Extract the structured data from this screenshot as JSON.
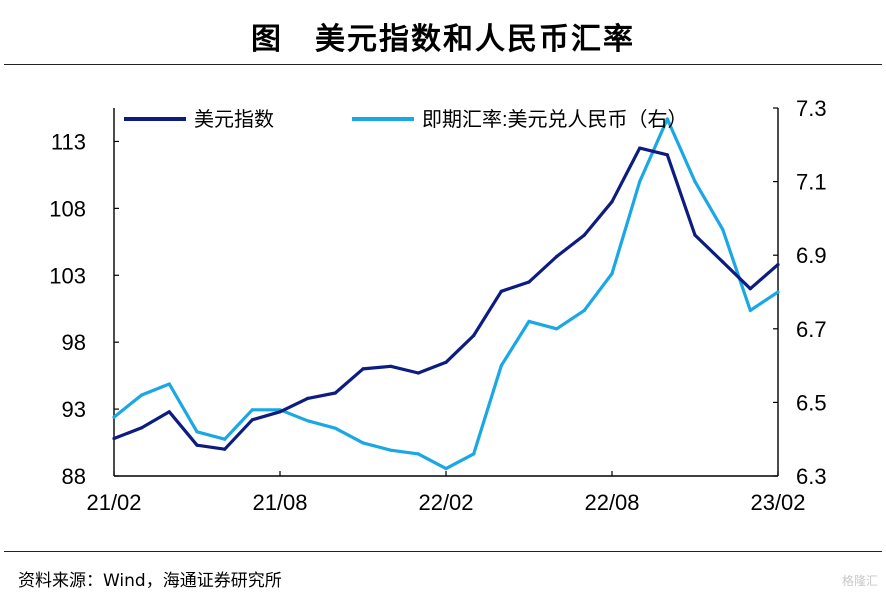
{
  "title": "图　美元指数和人民币汇率",
  "source": "资料来源：Wind，海通证券研究所",
  "watermark": "格隆汇",
  "colors": {
    "dxy": "#0d1c80",
    "cny": "#1aa7e6"
  },
  "chart_data": {
    "type": "line",
    "x_ticks": [
      "21/02",
      "21/08",
      "22/02",
      "22/08",
      "23/02"
    ],
    "x_range": [
      "2021-02",
      "2023-02"
    ],
    "y_left": {
      "ticks": [
        "88",
        "93",
        "98",
        "103",
        "108",
        "113"
      ],
      "range": [
        88,
        115.5
      ]
    },
    "y_right": {
      "ticks": [
        "6.3",
        "6.5",
        "6.7",
        "6.9",
        "7.1",
        "7.3"
      ],
      "range": [
        6.3,
        7.3
      ]
    },
    "grid": false,
    "legend_position": "top",
    "series": [
      {
        "name": "美元指数",
        "axis": "left",
        "x": [
          "2021-02",
          "2021-03",
          "2021-04",
          "2021-05",
          "2021-06",
          "2021-07",
          "2021-08",
          "2021-09",
          "2021-10",
          "2021-11",
          "2021-12",
          "2022-01",
          "2022-02",
          "2022-03",
          "2022-04",
          "2022-05",
          "2022-06",
          "2022-07",
          "2022-08",
          "2022-09",
          "2022-10",
          "2022-11",
          "2022-12",
          "2023-01",
          "2023-02"
        ],
        "values": [
          90.8,
          91.6,
          92.8,
          90.3,
          90.0,
          92.2,
          92.8,
          93.8,
          94.2,
          96.0,
          96.2,
          95.7,
          96.5,
          98.5,
          101.8,
          102.5,
          104.4,
          106.0,
          108.5,
          112.5,
          112.0,
          106.0,
          104.0,
          102.0,
          103.8
        ]
      },
      {
        "name": "即期汇率:美元兑人民币（右）",
        "axis": "right",
        "x": [
          "2021-02",
          "2021-03",
          "2021-04",
          "2021-05",
          "2021-06",
          "2021-07",
          "2021-08",
          "2021-09",
          "2021-10",
          "2021-11",
          "2021-12",
          "2022-01",
          "2022-02",
          "2022-03",
          "2022-04",
          "2022-05",
          "2022-06",
          "2022-07",
          "2022-08",
          "2022-09",
          "2022-10",
          "2022-11",
          "2022-12",
          "2023-01",
          "2023-02"
        ],
        "values": [
          6.46,
          6.52,
          6.55,
          6.42,
          6.4,
          6.48,
          6.48,
          6.45,
          6.43,
          6.39,
          6.37,
          6.36,
          6.32,
          6.36,
          6.6,
          6.72,
          6.7,
          6.75,
          6.85,
          7.1,
          7.27,
          7.1,
          6.97,
          6.75,
          6.8
        ]
      }
    ]
  }
}
